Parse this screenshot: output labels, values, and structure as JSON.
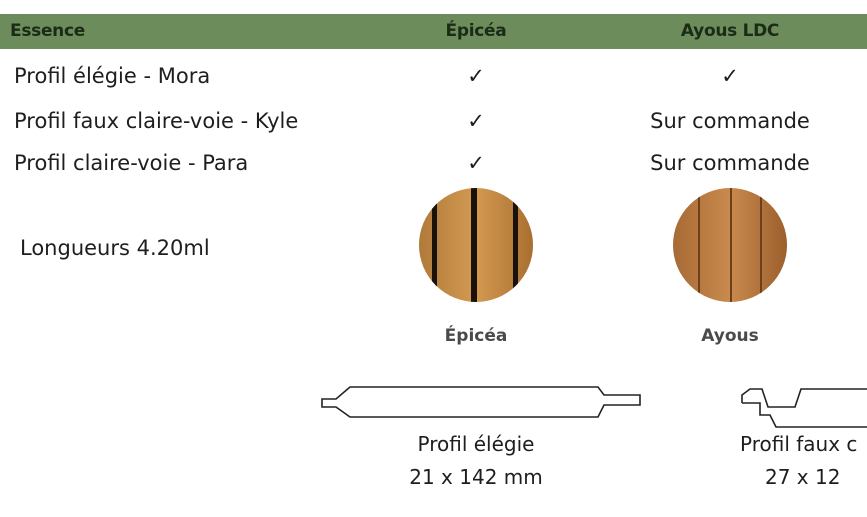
{
  "table": {
    "header": [
      "Essence",
      "Épicéa",
      "Ayous LDC"
    ],
    "rows": [
      [
        "Profil élégie - Mora",
        "✓",
        "✓"
      ],
      [
        "Profil faux claire-voie - Kyle",
        "✓",
        "Sur commande"
      ],
      [
        "Profil claire-voie - Para",
        "✓",
        "Sur commande"
      ]
    ]
  },
  "lengths": "Longueurs 4.20ml",
  "samples": [
    "Épicéa",
    "Ayous"
  ],
  "profiles": [
    {
      "name": "Profil élégie",
      "size": "21 x 142 mm"
    },
    {
      "name": "Profil faux c",
      "size": "27 x 12"
    }
  ]
}
